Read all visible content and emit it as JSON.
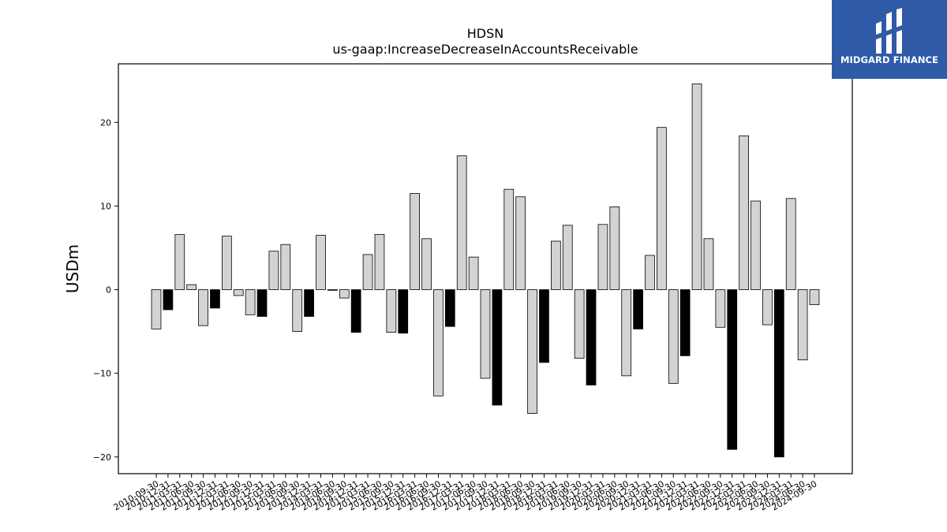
{
  "brand": {
    "name": "MIDGARD FINANCE",
    "colors": {
      "logo_background": "#2f5aa8",
      "logo_foreground": "#ffffff"
    }
  },
  "chart_data": {
    "type": "bar",
    "title": "HDSN",
    "subtitle": "us-gaap:IncreaseDecreaseInAccountsReceivable",
    "xlabel": "",
    "ylabel": "USDm",
    "ylim": [
      -22,
      27
    ],
    "yticks": [
      -20,
      -10,
      0,
      10,
      20
    ],
    "grid": false,
    "colors": {
      "q4_bar_fill": "#000000",
      "other_bar_fill": "#d3d3d3",
      "bar_edge": "#000000"
    },
    "categories": [
      "2010-09-30",
      "2010-12-31",
      "2011-03-31",
      "2011-06-30",
      "2011-09-30",
      "2011-12-31",
      "2012-03-31",
      "2012-06-30",
      "2012-09-30",
      "2012-12-31",
      "2013-03-31",
      "2013-06-30",
      "2013-09-30",
      "2013-12-31",
      "2014-03-31",
      "2014-06-30",
      "2014-09-30",
      "2014-12-31",
      "2015-03-31",
      "2015-06-30",
      "2015-09-30",
      "2015-12-31",
      "2016-03-31",
      "2016-06-30",
      "2016-09-30",
      "2016-12-31",
      "2017-03-31",
      "2017-06-30",
      "2017-09-30",
      "2017-12-31",
      "2018-03-31",
      "2018-06-30",
      "2018-09-30",
      "2018-12-31",
      "2019-03-31",
      "2019-06-30",
      "2019-09-30",
      "2019-12-31",
      "2020-03-31",
      "2020-06-30",
      "2020-09-30",
      "2020-12-31",
      "2021-03-31",
      "2021-06-30",
      "2021-09-30",
      "2021-12-31",
      "2022-03-31",
      "2022-06-30",
      "2022-09-30",
      "2022-12-31",
      "2023-03-31",
      "2023-06-30",
      "2023-09-30",
      "2023-12-31",
      "2024-03-31",
      "2024-06-30",
      "2024-09-30"
    ],
    "values": [
      -4.7,
      -2.4,
      6.6,
      0.6,
      -4.3,
      -2.2,
      6.4,
      -0.7,
      -3.0,
      -3.2,
      4.6,
      5.4,
      -5.0,
      -3.2,
      6.5,
      0.0,
      -1.0,
      -5.1,
      4.2,
      6.6,
      -5.1,
      -5.2,
      11.5,
      6.1,
      -12.7,
      -4.4,
      16.0,
      3.9,
      -10.6,
      -13.8,
      12.0,
      11.1,
      -14.8,
      -8.7,
      5.8,
      7.7,
      -8.2,
      -11.4,
      7.8,
      9.9,
      -10.3,
      -4.7,
      4.1,
      19.4,
      -11.2,
      -7.9,
      24.6,
      6.1,
      -4.5,
      -19.1,
      18.4,
      10.6,
      -4.2,
      -20.0,
      10.9,
      -8.4,
      -1.8
    ]
  }
}
